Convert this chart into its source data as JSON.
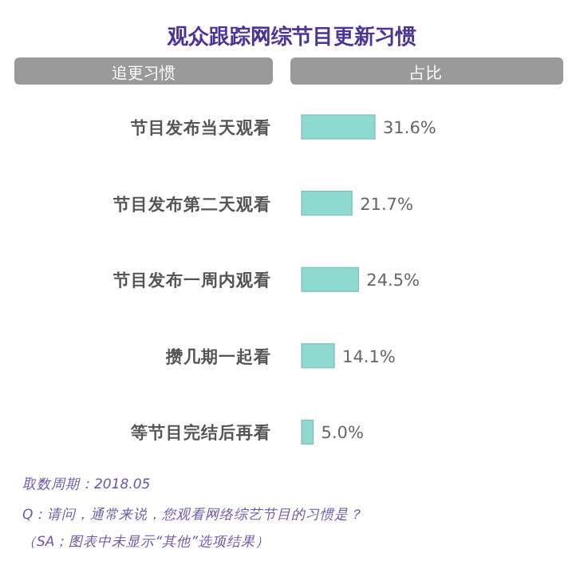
{
  "chart_data": {
    "type": "bar",
    "orientation": "horizontal",
    "title": "观众跟踪网综节目更新习惯",
    "ylabel": "追更习惯",
    "xlabel": "占比",
    "categories": [
      "节目发布当天观看",
      "节目发布第二天观看",
      "节目发布一周内观看",
      "攒几期一起看",
      "等节目完结后再看"
    ],
    "values": [
      31.6,
      21.7,
      24.5,
      14.1,
      5.0
    ],
    "value_labels": [
      "31.6%",
      "21.7%",
      "24.5%",
      "14.1%",
      "5.0%"
    ],
    "color": "#8ed9d0",
    "annotations": [
      "取数周期：2018.05",
      "Q：请问，通常来说，您观看网络综艺节目的习惯是？",
      "（SA；图表中未显示“其他”选项结果）"
    ]
  }
}
